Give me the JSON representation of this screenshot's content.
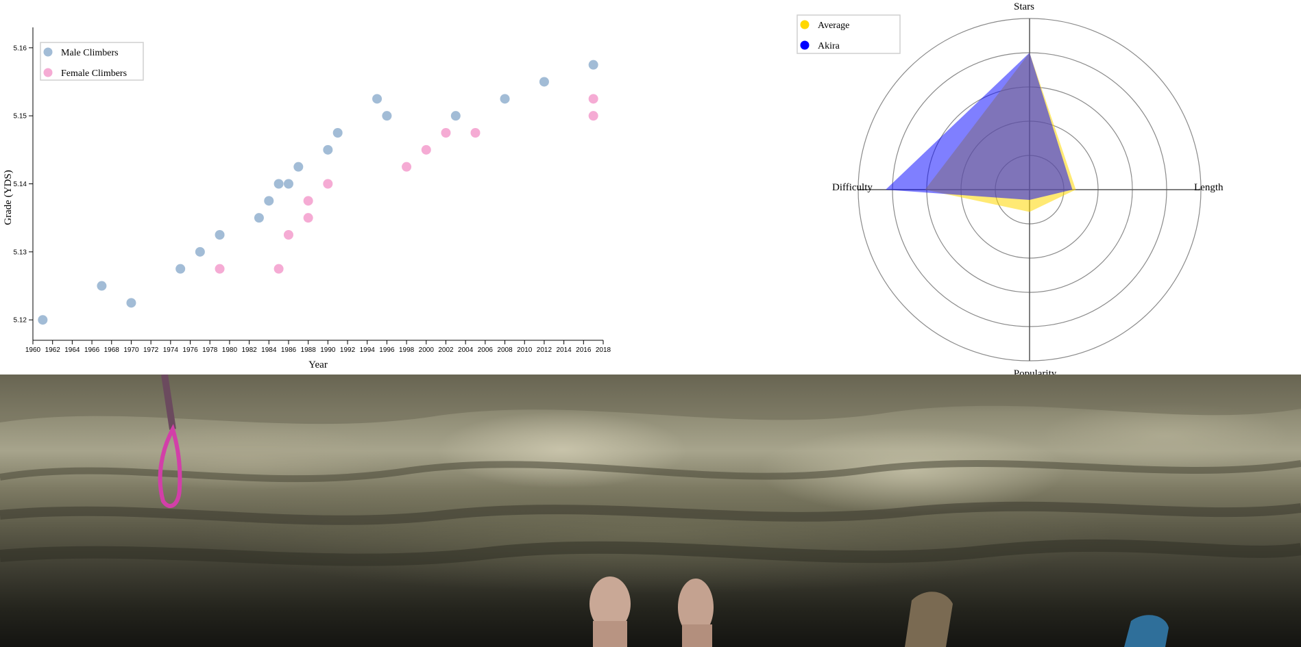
{
  "chart_data": [
    {
      "type": "scatter",
      "xlabel": "Year",
      "ylabel": "Grade (YDS)",
      "xlim": [
        1960,
        2018
      ],
      "ylim": [
        5.117,
        5.163
      ],
      "x_ticks": [
        "1960",
        "1962",
        "1964",
        "1966",
        "1968",
        "1970",
        "1972",
        "1974",
        "1976",
        "1978",
        "1980",
        "1982",
        "1984",
        "1986",
        "1988",
        "1990",
        "1992",
        "1994",
        "1996",
        "1998",
        "2000",
        "2002",
        "2004",
        "2006",
        "2008",
        "2010",
        "2012",
        "2014",
        "2016",
        "2018"
      ],
      "y_ticks": [
        {
          "value": 5.12,
          "label": "5.12"
        },
        {
          "value": 5.13,
          "label": "5.13"
        },
        {
          "value": 5.14,
          "label": "5.14"
        },
        {
          "value": 5.15,
          "label": "5.15"
        },
        {
          "value": 5.16,
          "label": "5.16"
        }
      ],
      "legend_position": "top-left",
      "series": [
        {
          "name": "Male Climbers",
          "color": "#a2bcd6",
          "points": [
            {
              "x": 1961,
              "y": 5.12
            },
            {
              "x": 1967,
              "y": 5.125
            },
            {
              "x": 1970,
              "y": 5.1225
            },
            {
              "x": 1975,
              "y": 5.1275
            },
            {
              "x": 1977,
              "y": 5.13
            },
            {
              "x": 1979,
              "y": 5.1325
            },
            {
              "x": 1983,
              "y": 5.135
            },
            {
              "x": 1984,
              "y": 5.1375
            },
            {
              "x": 1985,
              "y": 5.14
            },
            {
              "x": 1986,
              "y": 5.14
            },
            {
              "x": 1987,
              "y": 5.1425
            },
            {
              "x": 1990,
              "y": 5.145
            },
            {
              "x": 1991,
              "y": 5.1475
            },
            {
              "x": 1995,
              "y": 5.1525
            },
            {
              "x": 1996,
              "y": 5.15
            },
            {
              "x": 2003,
              "y": 5.15
            },
            {
              "x": 2008,
              "y": 5.1525
            },
            {
              "x": 2012,
              "y": 5.155
            },
            {
              "x": 2017,
              "y": 5.1575
            }
          ]
        },
        {
          "name": "Female Climbers",
          "color": "#f5abd4",
          "points": [
            {
              "x": 1979,
              "y": 5.1275
            },
            {
              "x": 1985,
              "y": 5.1275
            },
            {
              "x": 1986,
              "y": 5.1325
            },
            {
              "x": 1988,
              "y": 5.135
            },
            {
              "x": 1988,
              "y": 5.1375
            },
            {
              "x": 1990,
              "y": 5.14
            },
            {
              "x": 1998,
              "y": 5.1425
            },
            {
              "x": 2000,
              "y": 5.145
            },
            {
              "x": 2002,
              "y": 5.1475
            },
            {
              "x": 2005,
              "y": 5.1475
            },
            {
              "x": 2017,
              "y": 5.15
            },
            {
              "x": 2017,
              "y": 5.1525
            }
          ]
        }
      ]
    },
    {
      "type": "radar",
      "axes": [
        "Stars",
        "Length",
        "Popularity",
        "Difficulty"
      ],
      "max": 5,
      "rings": 5,
      "legend_position": "top-left",
      "series": [
        {
          "name": "Average",
          "color": "#ffd700",
          "fill_opacity": 0.55,
          "values": [
            4,
            1.35,
            0.65,
            3.05
          ]
        },
        {
          "name": "Akira",
          "color": "#0000ff",
          "fill_opacity": 0.5,
          "values": [
            4,
            1.25,
            0.3,
            4.2
          ]
        }
      ]
    }
  ],
  "photo": {
    "description_icon": "climbing-overhang-photo-icon"
  }
}
